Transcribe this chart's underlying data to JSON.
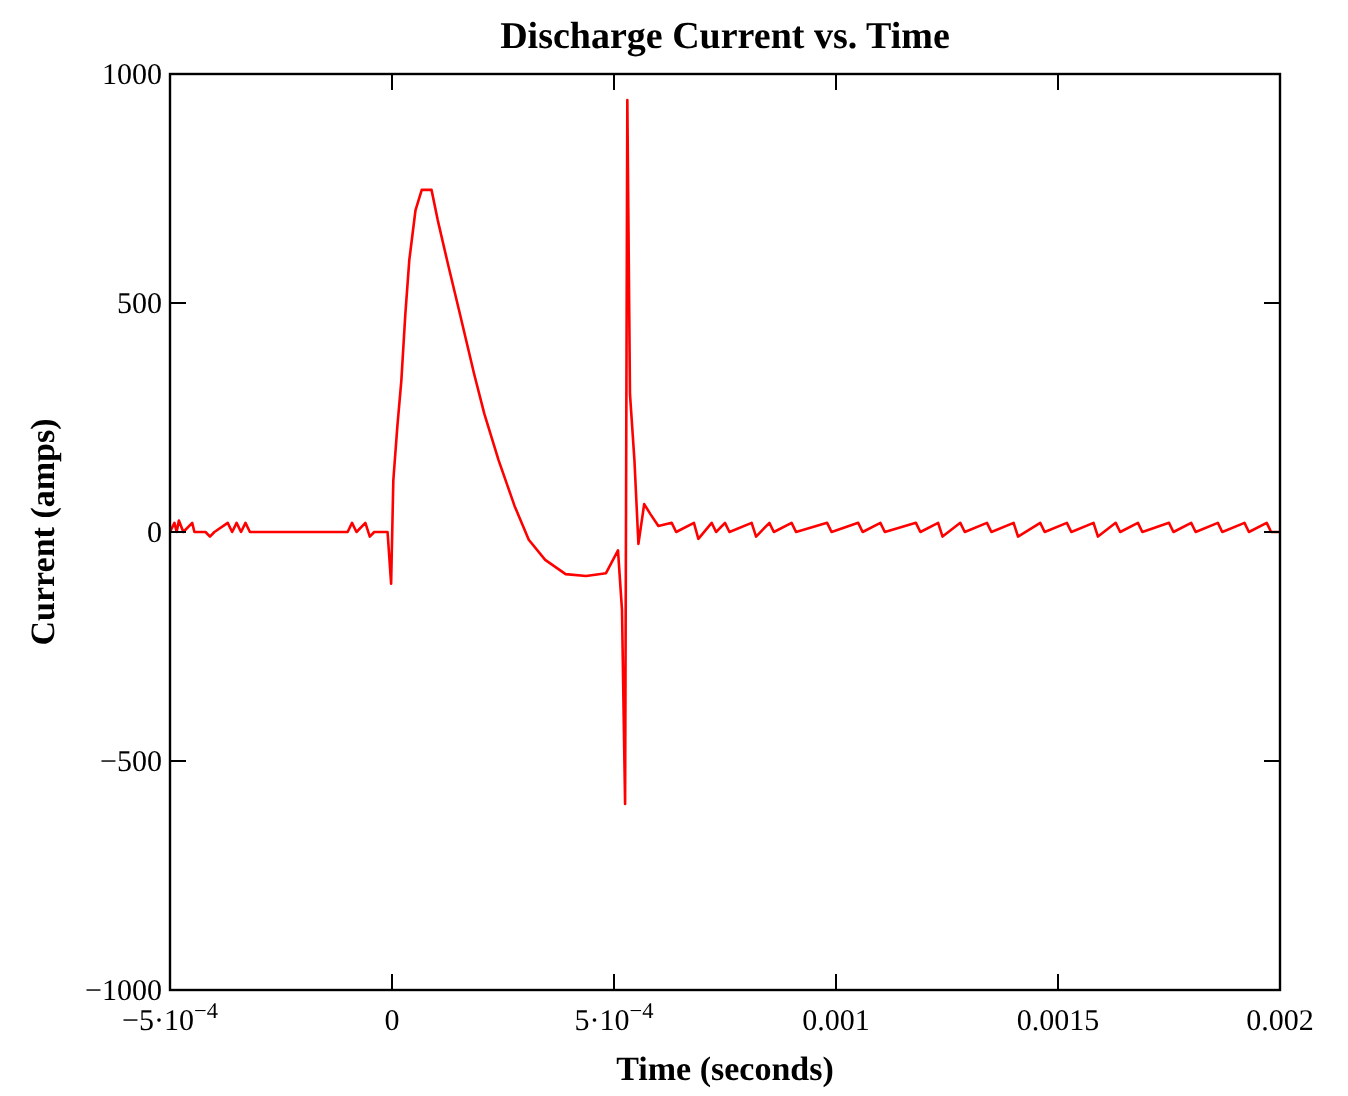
{
  "chart_data": {
    "type": "line",
    "title": "Discharge Current vs. Time",
    "xlabel": "Time (seconds)",
    "ylabel": "Current (amps)",
    "xlim": [
      -0.0005,
      0.002
    ],
    "ylim": [
      -1000,
      1000
    ],
    "xticks": [
      {
        "value": -0.0005,
        "label": "−5·10$^{−4}$"
      },
      0,
      {
        "value": 0.0005,
        "label": "5·10$^{−4}$"
      },
      0.001,
      0.0015,
      0.002
    ],
    "yticks": [
      -1000,
      -500,
      0,
      500,
      1000
    ],
    "grid": false,
    "marker": "none",
    "line_style": "solid",
    "series": [
      {
        "color": "#ff0000",
        "x": [
          -0.0005,
          -0.00049,
          -0.000485,
          -0.00048,
          -0.00047,
          -0.00045,
          -0.000445,
          -0.00042,
          -0.00041,
          -0.0004,
          -0.00037,
          -0.00036,
          -0.00035,
          -0.00034,
          -0.00033,
          -0.00032,
          -0.00029,
          -0.0001,
          -9e-05,
          -8e-05,
          -6e-05,
          -5e-05,
          -4e-05,
          -1e-05,
          -2e-06,
          3e-06,
          1.2e-05,
          2.1e-05,
          3e-05,
          3.9e-05,
          5.3e-05,
          6.7e-05,
          8.9e-05,
          0.000103,
          0.000126,
          0.000153,
          0.000185,
          0.000208,
          0.00024,
          0.000276,
          0.000308,
          0.000345,
          0.000391,
          0.000437,
          0.000482,
          0.000509,
          0.000518,
          0.000525,
          0.00053,
          0.000536,
          0.000546,
          0.000555,
          0.000568,
          0.000582,
          0.0006,
          0.00063,
          0.00064,
          0.00068,
          0.00069,
          0.00072,
          0.00073,
          0.00075,
          0.00076,
          0.00081,
          0.00082,
          0.00085,
          0.00086,
          0.0009,
          0.00091,
          0.00098,
          0.00099,
          0.00105,
          0.00106,
          0.0011,
          0.00111,
          0.00118,
          0.00119,
          0.00123,
          0.00124,
          0.00128,
          0.00129,
          0.00134,
          0.00135,
          0.0014,
          0.00141,
          0.00146,
          0.00147,
          0.00152,
          0.00153,
          0.00158,
          0.00159,
          0.00163,
          0.00164,
          0.00168,
          0.00169,
          0.00175,
          0.00176,
          0.0018,
          0.00181,
          0.00186,
          0.00187,
          0.00192,
          0.00193,
          0.00197,
          0.00198,
          0.002
        ],
        "values": [
          0,
          20,
          0,
          25,
          0,
          20,
          0,
          0,
          -10,
          0,
          20,
          0,
          20,
          0,
          20,
          0,
          0,
          0,
          20,
          0,
          20,
          -10,
          0,
          0,
          -113,
          113,
          230,
          330,
          475,
          594,
          703,
          747,
          747,
          681,
          585,
          476,
          345,
          258,
          157,
          57,
          -17,
          -61,
          -92,
          -96,
          -90,
          -40,
          -170,
          -594,
          943,
          301,
          157,
          -26,
          61,
          39,
          13,
          20,
          0,
          20,
          -15,
          20,
          0,
          20,
          0,
          20,
          -10,
          20,
          0,
          20,
          0,
          20,
          0,
          20,
          0,
          20,
          0,
          20,
          0,
          20,
          -10,
          20,
          0,
          20,
          0,
          20,
          -10,
          20,
          0,
          20,
          0,
          20,
          -10,
          20,
          0,
          20,
          0,
          20,
          0,
          20,
          0,
          20,
          0,
          20,
          0,
          20,
          0,
          0
        ]
      }
    ]
  }
}
